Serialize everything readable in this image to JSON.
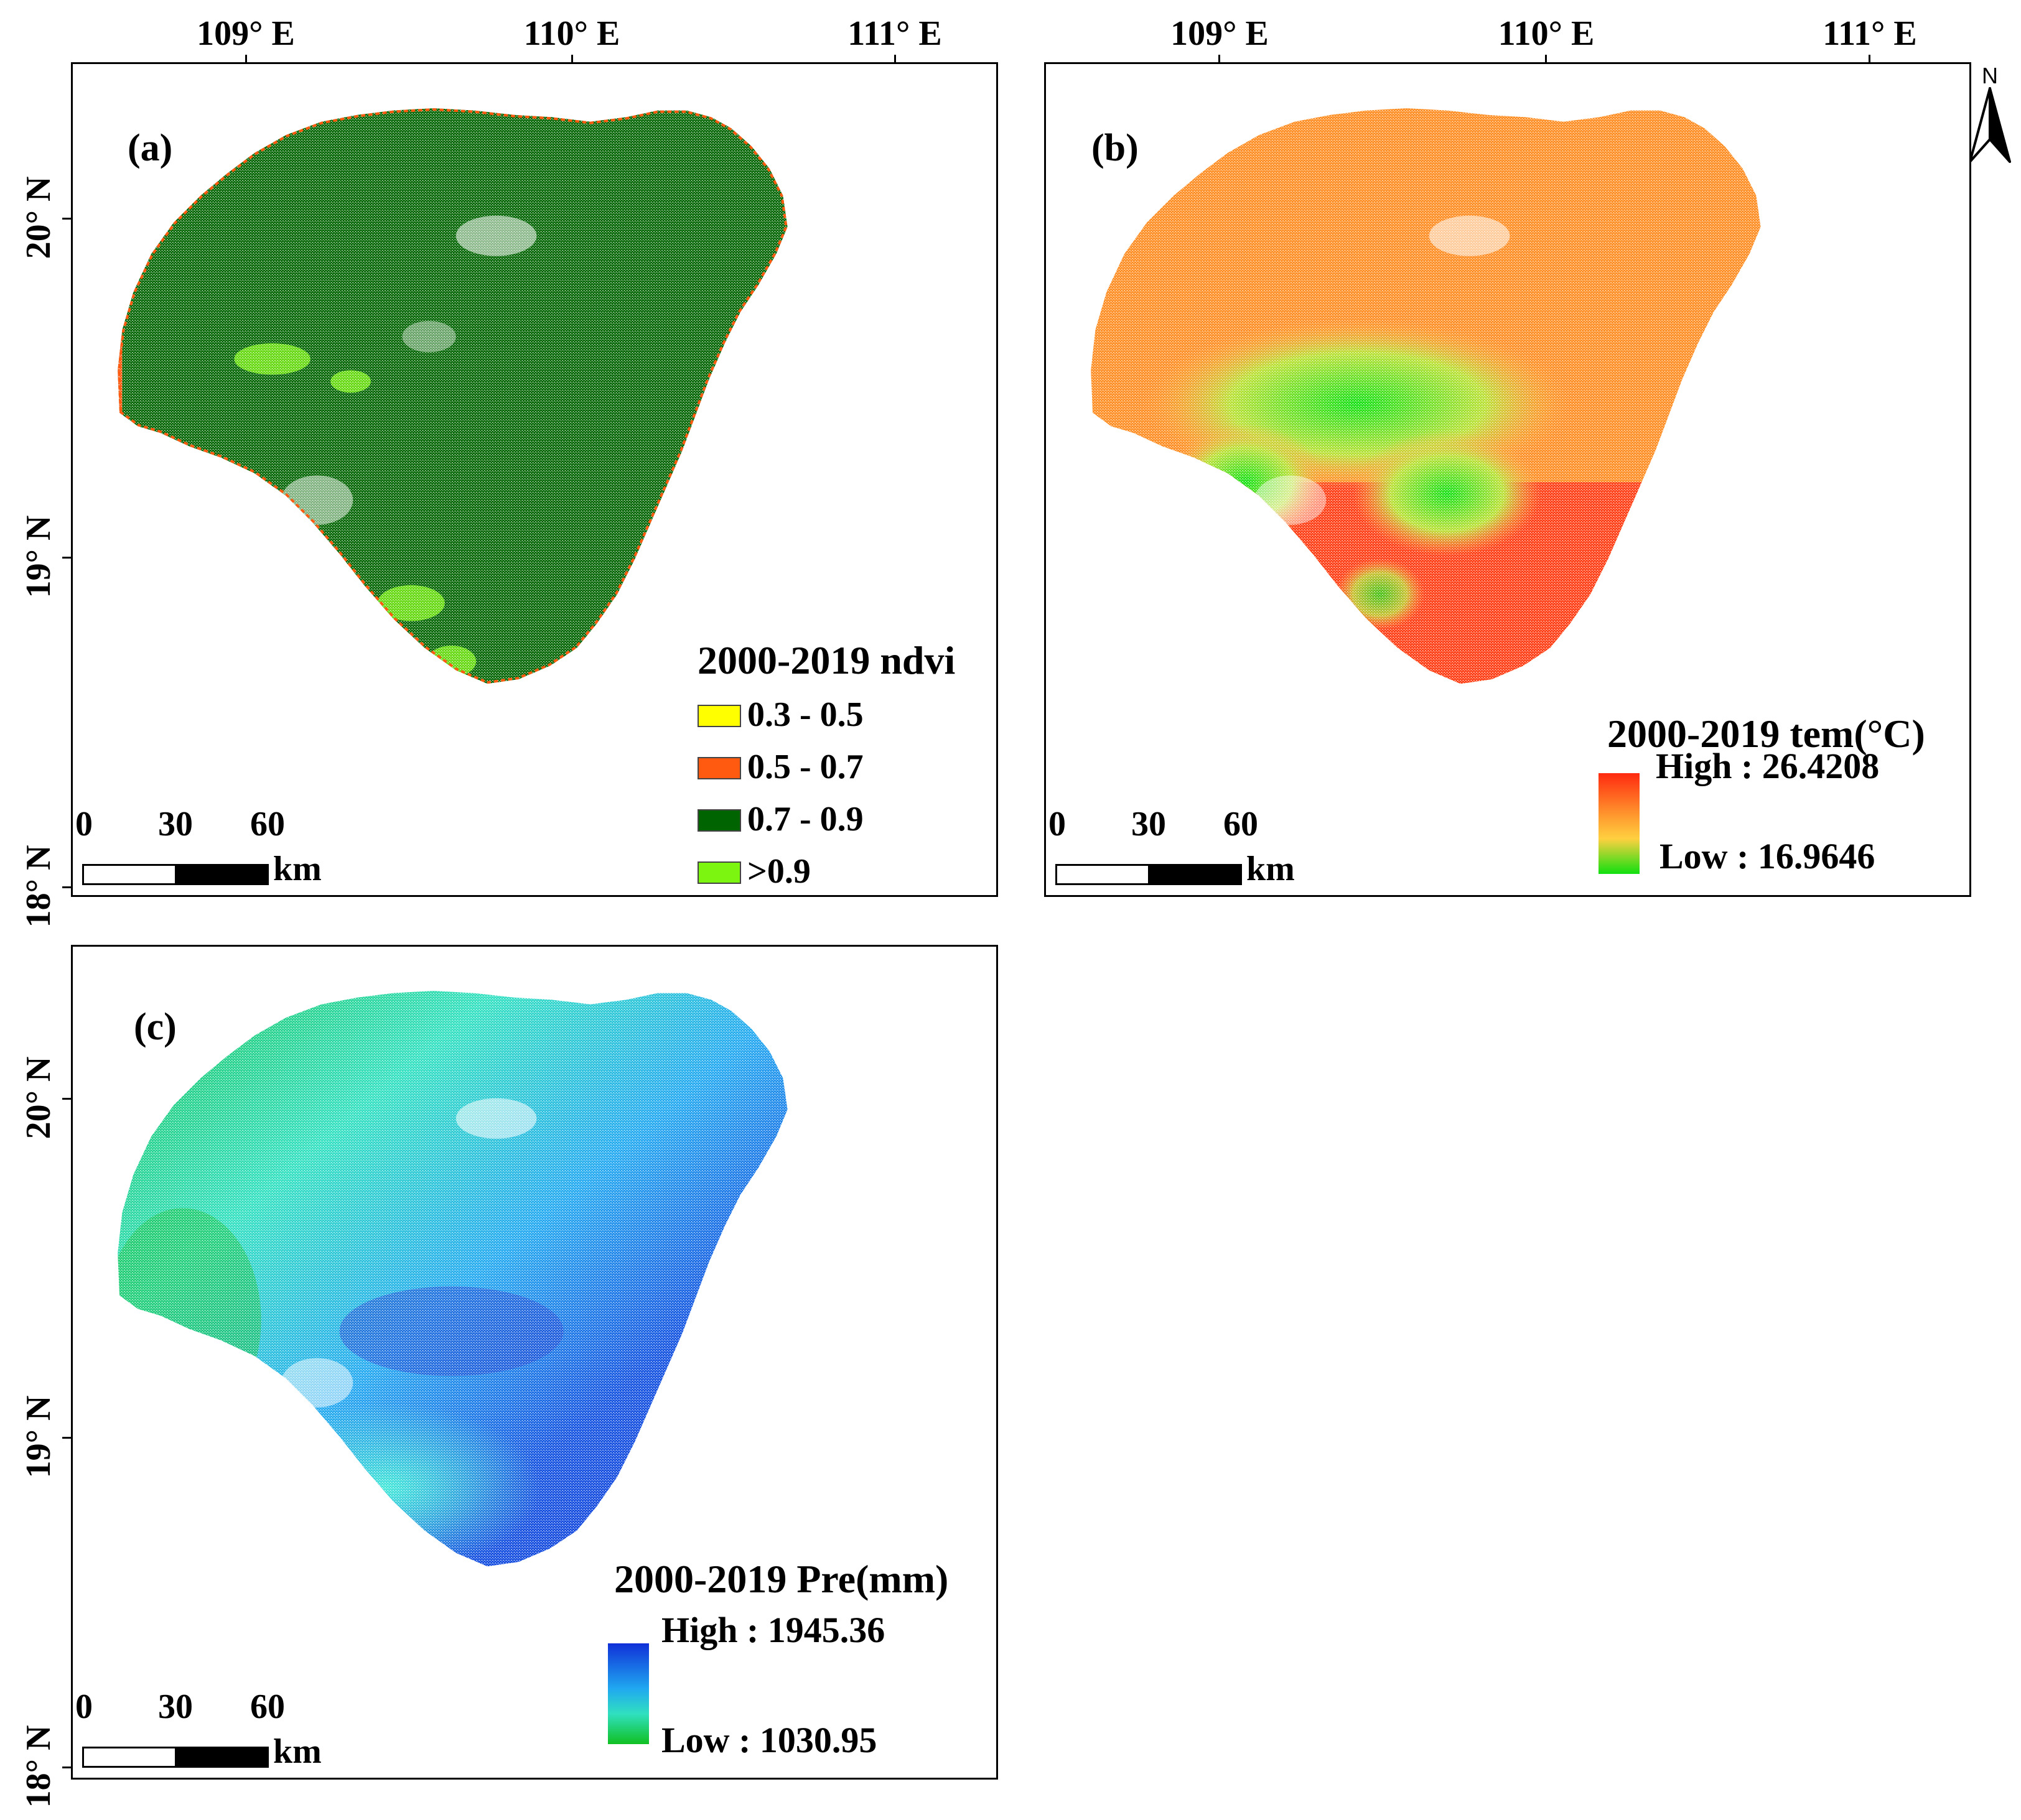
{
  "axes": {
    "lon_labels": [
      "109° E",
      "110° E",
      "111° E"
    ],
    "lat_labels": [
      "20° N",
      "19° N",
      "18° N"
    ]
  },
  "north_label": "N",
  "panel_a": {
    "label": "(a)",
    "legend_title": "2000-2019 ndvi",
    "classes": [
      {
        "label": "0.3 - 0.5",
        "color": "#ffff00"
      },
      {
        "label": "0.5 - 0.7",
        "color": "#ff5a10"
      },
      {
        "label": "0.7 - 0.9",
        "color": "#006400"
      },
      {
        "label": ">0.9",
        "color": "#7cf510"
      }
    ],
    "scale": {
      "zero": "0",
      "mid": "30",
      "end": "60",
      "unit": "km"
    }
  },
  "panel_b": {
    "label": "(b)",
    "legend_title": "2000-2019  tem(°C)",
    "high": "High : 26.4208",
    "low": "Low : 16.9646",
    "colors": [
      "#ff2a10",
      "#ffa030",
      "#ffd040",
      "#10e010"
    ],
    "scale": {
      "zero": "0",
      "mid": "30",
      "end": "60",
      "unit": "km"
    }
  },
  "panel_c": {
    "label": "(c)",
    "legend_title": "2000-2019  Pre(mm)",
    "high": "High : 1945.36",
    "low": "Low : 1030.95",
    "colors": [
      "#1030d8",
      "#20a8f0",
      "#30e0c0",
      "#10c020"
    ],
    "scale": {
      "zero": "0",
      "mid": "30",
      "end": "60",
      "unit": "km"
    }
  }
}
